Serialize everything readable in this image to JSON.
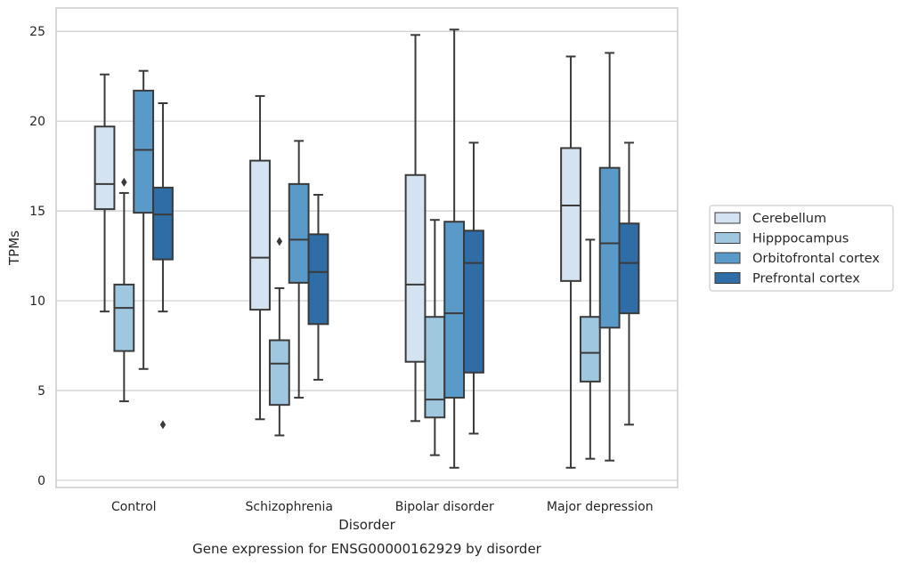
{
  "chart_data": {
    "type": "box",
    "title": "Gene expression for ENSG00000162929 by disorder",
    "xlabel": "Disorder",
    "ylabel": "TPMs",
    "ylim": [
      -0.4,
      26.3
    ],
    "yticks": [
      0,
      5,
      10,
      15,
      20,
      25
    ],
    "grid": "horizontal",
    "legend_position": "right",
    "categories": [
      "Control",
      "Schizophrenia",
      "Bipolar disorder",
      "Major depression"
    ],
    "series": [
      {
        "name": "Cerebellum",
        "color": "#d4e3f2",
        "boxes": [
          {
            "whisker_low": 9.4,
            "q1": 15.1,
            "median": 16.5,
            "q3": 19.7,
            "whisker_high": 22.6,
            "outliers": []
          },
          {
            "whisker_low": 3.4,
            "q1": 9.5,
            "median": 12.4,
            "q3": 17.8,
            "whisker_high": 21.4,
            "outliers": []
          },
          {
            "whisker_low": 3.3,
            "q1": 6.6,
            "median": 10.9,
            "q3": 17.0,
            "whisker_high": 24.8,
            "outliers": []
          },
          {
            "whisker_low": 0.7,
            "q1": 11.1,
            "median": 15.3,
            "q3": 18.5,
            "whisker_high": 23.6,
            "outliers": []
          }
        ]
      },
      {
        "name": "Hipppocampus",
        "color": "#9fc7e0",
        "boxes": [
          {
            "whisker_low": 4.4,
            "q1": 7.2,
            "median": 9.6,
            "q3": 10.9,
            "whisker_high": 16.0,
            "outliers": [
              16.6
            ]
          },
          {
            "whisker_low": 2.5,
            "q1": 4.2,
            "median": 6.5,
            "q3": 7.8,
            "whisker_high": 10.7,
            "outliers": [
              13.3
            ]
          },
          {
            "whisker_low": 1.4,
            "q1": 3.5,
            "median": 4.5,
            "q3": 9.1,
            "whisker_high": 14.5,
            "outliers": []
          },
          {
            "whisker_low": 1.2,
            "q1": 5.5,
            "median": 7.1,
            "q3": 9.1,
            "whisker_high": 13.4,
            "outliers": []
          }
        ]
      },
      {
        "name": "Orbitofrontal cortex",
        "color": "#5a9ac8",
        "boxes": [
          {
            "whisker_low": 6.2,
            "q1": 14.9,
            "median": 18.4,
            "q3": 21.7,
            "whisker_high": 22.8,
            "outliers": []
          },
          {
            "whisker_low": 4.6,
            "q1": 11.0,
            "median": 13.4,
            "q3": 16.5,
            "whisker_high": 18.9,
            "outliers": []
          },
          {
            "whisker_low": 0.7,
            "q1": 4.6,
            "median": 9.3,
            "q3": 14.4,
            "whisker_high": 25.1,
            "outliers": []
          },
          {
            "whisker_low": 1.1,
            "q1": 8.5,
            "median": 13.2,
            "q3": 17.4,
            "whisker_high": 23.8,
            "outliers": []
          }
        ]
      },
      {
        "name": "Prefrontal cortex",
        "color": "#2e6da6",
        "boxes": [
          {
            "whisker_low": 9.4,
            "q1": 12.3,
            "median": 14.8,
            "q3": 16.3,
            "whisker_high": 21.0,
            "outliers": [
              3.1
            ]
          },
          {
            "whisker_low": 5.6,
            "q1": 8.7,
            "median": 11.6,
            "q3": 13.7,
            "whisker_high": 15.9,
            "outliers": []
          },
          {
            "whisker_low": 2.6,
            "q1": 6.0,
            "median": 12.1,
            "q3": 13.9,
            "whisker_high": 18.8,
            "outliers": []
          },
          {
            "whisker_low": 3.1,
            "q1": 9.3,
            "median": 12.1,
            "q3": 14.3,
            "whisker_high": 18.8,
            "outliers": []
          }
        ]
      }
    ]
  }
}
